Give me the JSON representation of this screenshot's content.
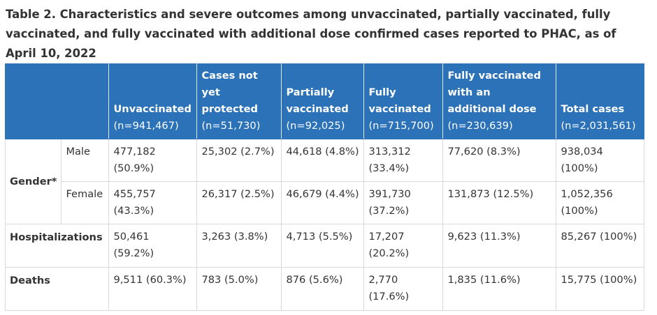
{
  "caption": "Table 2. Characteristics and severe outcomes among unvaccinated, partially vaccinated, fully vaccinated, and fully vaccinated with additional dose confirmed cases reported to PHAC, as of April 10, 2022",
  "headers": [
    {
      "label": "Unvaccinated",
      "n": "(n=941,467)"
    },
    {
      "label": "Cases not yet protected",
      "n": "(n=51,730)"
    },
    {
      "label": "Partially vaccinated",
      "n": "(n=92,025)"
    },
    {
      "label": "Fully vaccinated",
      "n": "(n=715,700)"
    },
    {
      "label": "Fully vaccinated with an additional dose",
      "n": "(n=230,639)"
    },
    {
      "label": "Total cases",
      "n": "(n=2,031,561)"
    }
  ],
  "gender_label": "Gender*",
  "rows": {
    "male": {
      "label": "Male",
      "cells": [
        "477,182 (50.9%)",
        "25,302 (2.7%)",
        "44,618 (4.8%)",
        "313,312 (33.4%)",
        "77,620 (8.3%)",
        "938,034 (100%)"
      ]
    },
    "female": {
      "label": "Female",
      "cells": [
        "455,757 (43.3%)",
        "26,317 (2.5%)",
        "46,679 (4.4%)",
        "391,730 (37.2%)",
        "131,873 (12.5%)",
        "1,052,356 (100%)"
      ]
    },
    "hospitalizations": {
      "label": "Hospitalizations",
      "cells": [
        "50,461 (59.2%)",
        "3,263 (3.8%)",
        "4,713 (5.5%)",
        "17,207 (20.2%)",
        "9,623 (11.3%)",
        "85,267 (100%)"
      ]
    },
    "deaths": {
      "label": "Deaths",
      "cells": [
        "9,511 (60.3%)",
        "783 (5.0%)",
        "876 (5.6%)",
        "2,770 (17.6%)",
        "1,835 (11.6%)",
        "15,775 (100%)"
      ]
    }
  },
  "colors": {
    "header_bg": "#2b72b8",
    "border": "#d9d9d9",
    "text": "#333333"
  }
}
